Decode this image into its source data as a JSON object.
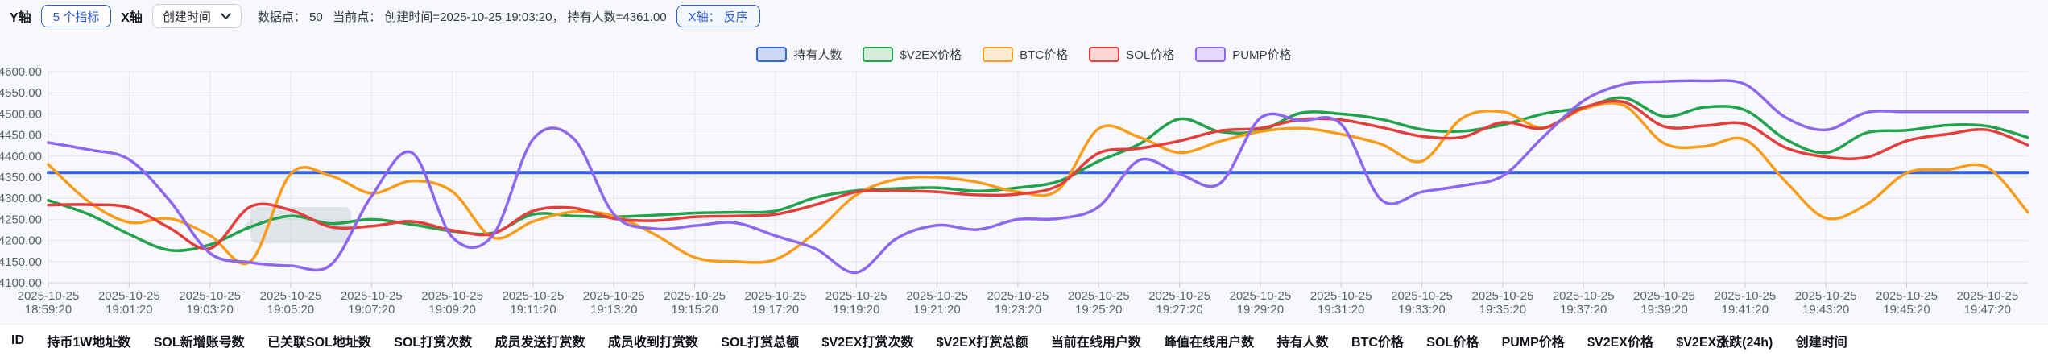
{
  "toolbar": {
    "y_axis_label": "Y轴",
    "y_axis_button": "5 个指标",
    "x_axis_label": "X轴",
    "x_axis_select_value": "创建时间",
    "info": "数据点： 50   当前点： 创建时间=2025-10-25 19:03:20， 持有人数=4361.00",
    "reverse_button": "X轴： 反序"
  },
  "legend": {
    "items": [
      {
        "label": "持有人数",
        "color": "#3564dc",
        "fill": "#ccd9f6"
      },
      {
        "label": "$V2EX价格",
        "color": "#21a24c",
        "fill": "#d5ecdb"
      },
      {
        "label": "BTC价格",
        "color": "#f89c1c",
        "fill": "#fcebd2"
      },
      {
        "label": "SOL价格",
        "color": "#e33e3c",
        "fill": "#fad6d4"
      },
      {
        "label": "PUMP价格",
        "color": "#8f66ee",
        "fill": "#e5d9fb"
      }
    ]
  },
  "chart_data": {
    "type": "line",
    "date": "2025-10-25",
    "x": [
      "18:59:20",
      "19:00:20",
      "19:01:20",
      "19:02:20",
      "19:03:20",
      "19:04:20",
      "19:05:20",
      "19:06:20",
      "19:07:20",
      "19:08:20",
      "19:09:20",
      "19:10:20",
      "19:11:20",
      "19:12:20",
      "19:13:20",
      "19:14:20",
      "19:15:20",
      "19:16:20",
      "19:17:20",
      "19:18:20",
      "19:19:20",
      "19:20:20",
      "19:21:20",
      "19:22:20",
      "19:23:20",
      "19:24:20",
      "19:25:20",
      "19:26:20",
      "19:27:20",
      "19:28:20",
      "19:29:20",
      "19:30:20",
      "19:31:20",
      "19:32:20",
      "19:33:20",
      "19:34:20",
      "19:35:20",
      "19:36:20",
      "19:37:20",
      "19:38:20",
      "19:39:20",
      "19:40:20",
      "19:41:20",
      "19:42:20",
      "19:43:20",
      "19:44:20",
      "19:45:20",
      "19:46:20",
      "19:47:20",
      "19:48:20"
    ],
    "label_every": 2,
    "ylim": [
      4100,
      4600
    ],
    "ytick_step": 50,
    "grid": true,
    "legend_position": "top-center",
    "current_point": {
      "x": "2025-10-25 19:03:20",
      "series": "持有人数",
      "value": 4361.0
    },
    "series": [
      {
        "name": "持有人数",
        "color": "#3564dc",
        "width": 4,
        "values": [
          4361,
          4361,
          4361,
          4361,
          4361,
          4361,
          4361,
          4361,
          4361,
          4361,
          4361,
          4361,
          4361,
          4361,
          4361,
          4361,
          4361,
          4361,
          4361,
          4361,
          4361,
          4361,
          4361,
          4361,
          4361,
          4361,
          4361,
          4361,
          4361,
          4361,
          4361,
          4361,
          4361,
          4361,
          4361,
          4361,
          4361,
          4361,
          4361,
          4361,
          4361,
          4361,
          4361,
          4361,
          4361,
          4361,
          4361,
          4361,
          4361,
          4361
        ]
      },
      {
        "name": "$V2EX价格",
        "color": "#21a24c",
        "width": 3.5,
        "values": [
          4295,
          4262,
          4215,
          4177,
          4190,
          4232,
          4258,
          4240,
          4250,
          4238,
          4222,
          4218,
          4262,
          4258,
          4256,
          4260,
          4265,
          4267,
          4270,
          4302,
          4318,
          4323,
          4325,
          4317,
          4325,
          4340,
          4388,
          4428,
          4488,
          4458,
          4460,
          4502,
          4500,
          4487,
          4463,
          4459,
          4474,
          4500,
          4515,
          4538,
          4494,
          4516,
          4509,
          4440,
          4408,
          4455,
          4461,
          4473,
          4471,
          4444
        ]
      },
      {
        "name": "BTC价格",
        "color": "#f89c1c",
        "width": 3.5,
        "values": [
          4380,
          4292,
          4243,
          4252,
          4212,
          4150,
          4358,
          4353,
          4312,
          4341,
          4316,
          4207,
          4245,
          4268,
          4258,
          4215,
          4160,
          4150,
          4155,
          4220,
          4308,
          4345,
          4350,
          4338,
          4315,
          4320,
          4465,
          4445,
          4408,
          4435,
          4458,
          4466,
          4452,
          4428,
          4388,
          4490,
          4505,
          4467,
          4512,
          4520,
          4430,
          4423,
          4439,
          4340,
          4253,
          4285,
          4360,
          4368,
          4373,
          4267
        ]
      },
      {
        "name": "SOL价格",
        "color": "#e33e3c",
        "width": 3.5,
        "values": [
          4284,
          4285,
          4278,
          4230,
          4181,
          4280,
          4272,
          4232,
          4234,
          4245,
          4224,
          4216,
          4270,
          4277,
          4252,
          4247,
          4256,
          4258,
          4262,
          4285,
          4315,
          4318,
          4315,
          4308,
          4310,
          4330,
          4407,
          4418,
          4436,
          4460,
          4466,
          4487,
          4486,
          4468,
          4447,
          4445,
          4480,
          4466,
          4515,
          4528,
          4470,
          4472,
          4476,
          4420,
          4398,
          4397,
          4436,
          4452,
          4462,
          4426
        ]
      },
      {
        "name": "PUMP价格",
        "color": "#8f66ee",
        "width": 3.5,
        "values": [
          4432,
          4415,
          4392,
          4295,
          4170,
          4148,
          4140,
          4143,
          4305,
          4408,
          4208,
          4212,
          4440,
          4442,
          4262,
          4228,
          4235,
          4242,
          4211,
          4180,
          4124,
          4205,
          4236,
          4226,
          4250,
          4252,
          4280,
          4390,
          4358,
          4335,
          4490,
          4484,
          4476,
          4296,
          4315,
          4330,
          4353,
          4445,
          4531,
          4570,
          4577,
          4578,
          4570,
          4492,
          4462,
          4503,
          4505,
          4505,
          4505,
          4505
        ]
      }
    ]
  },
  "table": {
    "columns": [
      "ID",
      "持币1W地址数",
      "SOL新增账号数",
      "已关联SOL地址数",
      "SOL打赏次数",
      "成员发送打赏数",
      "成员收到打赏数",
      "SOL打赏总额",
      "$V2EX打赏次数",
      "$V2EX打赏总额",
      "当前在线用户数",
      "峰值在线用户数",
      "持有人数",
      "BTC价格",
      "SOL价格",
      "PUMP价格",
      "$V2EX价格",
      "$V2EX涨跌(24h)",
      "创建时间"
    ]
  }
}
